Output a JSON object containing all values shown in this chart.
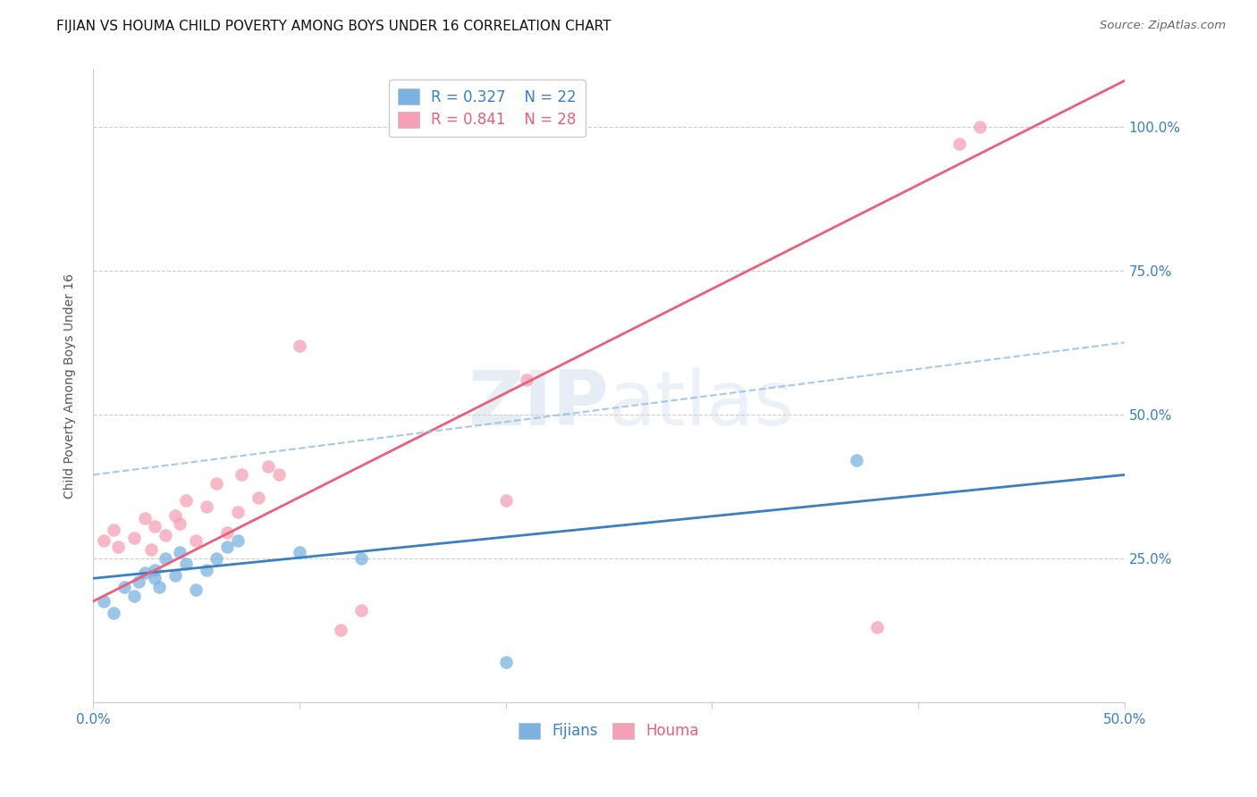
{
  "title": "FIJIAN VS HOUMA CHILD POVERTY AMONG BOYS UNDER 16 CORRELATION CHART",
  "source": "Source: ZipAtlas.com",
  "ylabel": "Child Poverty Among Boys Under 16",
  "watermark": "ZIPatlas",
  "xlim": [
    0.0,
    0.5
  ],
  "ylim": [
    0.0,
    1.1
  ],
  "xticks": [
    0.0,
    0.1,
    0.2,
    0.3,
    0.4,
    0.5
  ],
  "xtick_labels": [
    "0.0%",
    "",
    "",
    "",
    "",
    "50.0%"
  ],
  "ytick_labels": [
    "25.0%",
    "50.0%",
    "75.0%",
    "100.0%"
  ],
  "ytick_values": [
    0.25,
    0.5,
    0.75,
    1.0
  ],
  "fijian_color": "#7ab3e0",
  "houma_color": "#f5a0b5",
  "fijian_line_color": "#3a7fc1",
  "houma_line_color": "#e8607a",
  "dashed_line_color": "#90bce0",
  "R_fijian": 0.327,
  "N_fijian": 22,
  "R_houma": 0.841,
  "N_houma": 28,
  "fijian_x": [
    0.005,
    0.01,
    0.015,
    0.02,
    0.022,
    0.025,
    0.03,
    0.03,
    0.032,
    0.035,
    0.04,
    0.042,
    0.045,
    0.05,
    0.055,
    0.06,
    0.065,
    0.07,
    0.1,
    0.13,
    0.2,
    0.37
  ],
  "fijian_y": [
    0.175,
    0.155,
    0.2,
    0.185,
    0.21,
    0.225,
    0.215,
    0.23,
    0.2,
    0.25,
    0.22,
    0.26,
    0.24,
    0.195,
    0.23,
    0.25,
    0.27,
    0.28,
    0.26,
    0.25,
    0.07,
    0.42
  ],
  "houma_x": [
    0.005,
    0.01,
    0.012,
    0.02,
    0.025,
    0.028,
    0.03,
    0.035,
    0.04,
    0.042,
    0.045,
    0.05,
    0.055,
    0.06,
    0.065,
    0.07,
    0.072,
    0.08,
    0.085,
    0.09,
    0.1,
    0.12,
    0.13,
    0.2,
    0.21,
    0.38,
    0.42,
    0.43
  ],
  "houma_y": [
    0.28,
    0.3,
    0.27,
    0.285,
    0.32,
    0.265,
    0.305,
    0.29,
    0.325,
    0.31,
    0.35,
    0.28,
    0.34,
    0.38,
    0.295,
    0.33,
    0.395,
    0.355,
    0.41,
    0.395,
    0.62,
    0.125,
    0.16,
    0.35,
    0.56,
    0.13,
    0.97,
    1.0
  ],
  "fijian_trend_x": [
    0.0,
    0.5
  ],
  "fijian_trend_y": [
    0.215,
    0.395
  ],
  "houma_trend_x": [
    0.0,
    0.5
  ],
  "houma_trend_y": [
    0.175,
    1.08
  ],
  "dashed_trend_x": [
    0.0,
    0.5
  ],
  "dashed_trend_y": [
    0.395,
    0.625
  ],
  "title_fontsize": 11,
  "label_fontsize": 10,
  "tick_fontsize": 11,
  "legend_fontsize": 12,
  "background_color": "#ffffff",
  "grid_color": "#cccccc"
}
